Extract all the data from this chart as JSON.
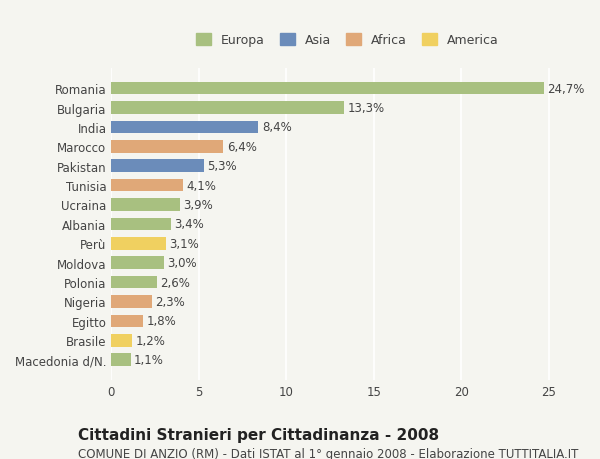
{
  "categories": [
    "Romania",
    "Bulgaria",
    "India",
    "Marocco",
    "Pakistan",
    "Tunisia",
    "Ucraina",
    "Albania",
    "Perù",
    "Moldova",
    "Polonia",
    "Nigeria",
    "Egitto",
    "Brasile",
    "Macedonia d/N."
  ],
  "values": [
    24.7,
    13.3,
    8.4,
    6.4,
    5.3,
    4.1,
    3.9,
    3.4,
    3.1,
    3.0,
    2.6,
    2.3,
    1.8,
    1.2,
    1.1
  ],
  "labels": [
    "24,7%",
    "13,3%",
    "8,4%",
    "6,4%",
    "5,3%",
    "4,1%",
    "3,9%",
    "3,4%",
    "3,1%",
    "3,0%",
    "2,6%",
    "2,3%",
    "1,8%",
    "1,2%",
    "1,1%"
  ],
  "continents": [
    "Europa",
    "Europa",
    "Asia",
    "Africa",
    "Asia",
    "Africa",
    "Europa",
    "Europa",
    "America",
    "Europa",
    "Europa",
    "Africa",
    "Africa",
    "America",
    "Europa"
  ],
  "continent_colors": {
    "Europa": "#a8c080",
    "Asia": "#6b8cba",
    "Africa": "#e0a878",
    "America": "#f0d060"
  },
  "legend_order": [
    "Europa",
    "Asia",
    "Africa",
    "America"
  ],
  "title": "Cittadini Stranieri per Cittadinanza - 2008",
  "subtitle": "COMUNE DI ANZIO (RM) - Dati ISTAT al 1° gennaio 2008 - Elaborazione TUTTITALIA.IT",
  "xlim": [
    0,
    27
  ],
  "xticks": [
    0,
    5,
    10,
    15,
    20,
    25
  ],
  "background_color": "#f5f5f0",
  "grid_color": "#ffffff",
  "bar_height": 0.65,
  "label_fontsize": 8.5,
  "title_fontsize": 11,
  "subtitle_fontsize": 8.5,
  "tick_fontsize": 8.5,
  "legend_fontsize": 9
}
